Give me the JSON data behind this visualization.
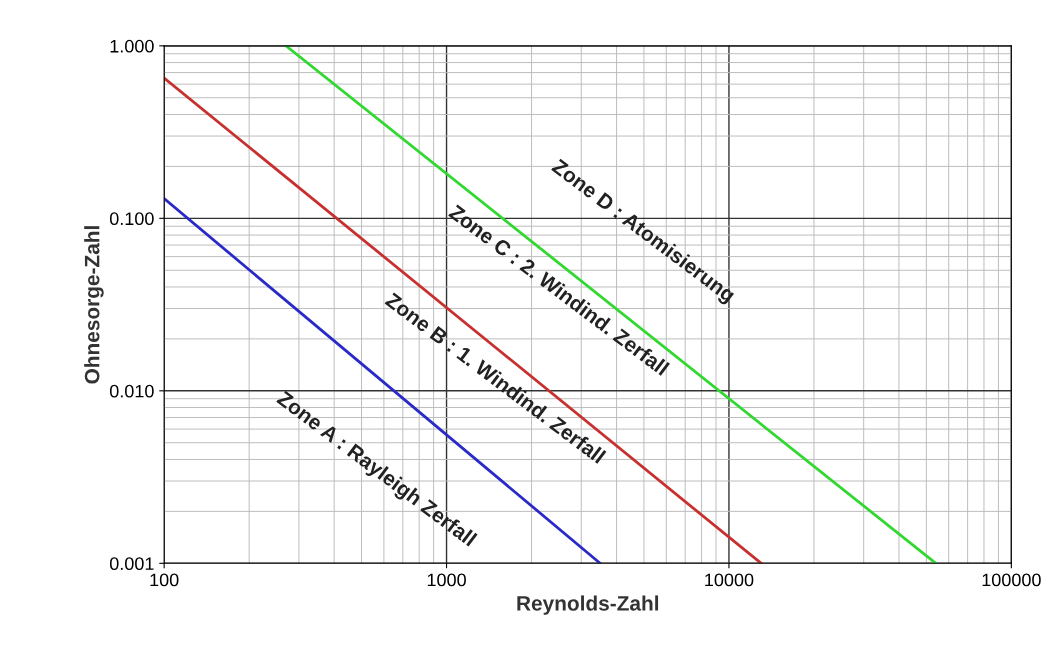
{
  "chart_data": {
    "type": "line",
    "xlabel": "Reynolds-Zahl",
    "ylabel": "Ohnesorge-Zahl",
    "log": "xy",
    "grid": true,
    "marker": "none",
    "line_style": "solid",
    "xlim": [
      100,
      100000
    ],
    "ylim": [
      0.001,
      1
    ],
    "xticks": [
      100,
      1000,
      10000,
      100000
    ],
    "yticks": [
      {
        "value": 0.001,
        "label": "0.001"
      },
      {
        "value": 0.01,
        "label": "0.010"
      },
      {
        "value": 0.1,
        "label": "0.100"
      },
      {
        "value": 1,
        "label": "1.000"
      }
    ],
    "series": [
      {
        "color": "#2a2ac8",
        "x": [
          100,
          3500
        ],
        "values": [
          0.13,
          0.001
        ]
      },
      {
        "color": "#c83030",
        "x": [
          100,
          13000
        ],
        "values": [
          0.65,
          0.001
        ]
      },
      {
        "color": "#30d830",
        "x": [
          270,
          54000
        ],
        "values": [
          1,
          0.001
        ]
      }
    ],
    "annotations": [
      "Zone A : Rayleigh Zerfall",
      "Zone B : 1. Windind. Zerfall",
      "Zone C : 2. Windind. Zerfall",
      "Zone D : Atomisierung"
    ]
  }
}
